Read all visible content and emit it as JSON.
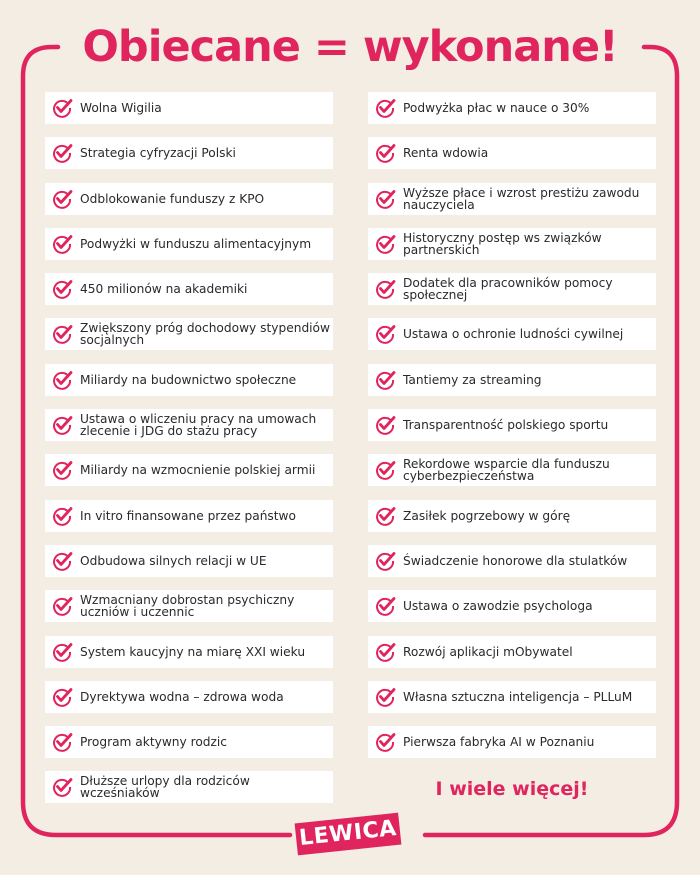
{
  "title": "Obiecane = wykonane!",
  "accent_color": "#e0245e",
  "icon": "check-circle-icon",
  "left_items": [
    "Wolna Wigilia",
    "Strategia cyfryzacji Polski",
    "Odblokowanie funduszy z KPO",
    "Podwyżki w funduszu alimentacyjnym",
    "450 milionów na akademiki",
    "Zwiększony próg dochodowy stypendiów socjalnych",
    "Miliardy na budownictwo społeczne",
    "Ustawa o wliczeniu pracy na umowach zlecenie i JDG do stażu pracy",
    "Miliardy na wzmocnienie polskiej armii",
    "In vitro finansowane przez państwo",
    "Odbudowa silnych relacji w UE",
    "Wzmacniany dobrostan psychiczny uczniów i uczennic",
    "System kaucyjny na miarę XXI wieku",
    "Dyrektywa wodna – zdrowa woda",
    "Program aktywny rodzic",
    "Dłuższe urlopy dla rodziców wcześniaków"
  ],
  "right_items": [
    "Podwyżka płac w nauce o 30%",
    "Renta wdowia",
    "Wyższe płace i wzrost prestiżu zawodu nauczyciela",
    "Historyczny postęp ws związków partnerskich",
    "Dodatek dla pracowników pomocy społecznej",
    "Ustawa o ochronie ludności cywilnej",
    "Tantiemy za streaming",
    "Transparentność polskiego sportu",
    "Rekordowe wsparcie dla funduszu cyberbezpieczeństwa",
    "Zasiłek pogrzebowy w górę",
    "Świadczenie honorowe dla stulatków",
    "Ustawa o zawodzie psychologa",
    "Rozwój aplikacji mObywatel",
    "Własna sztuczna inteligencja – PLLuM",
    "Pierwsza fabryka AI w Poznaniu"
  ],
  "more_text": "I wiele więcej!",
  "logo": "LEWICA"
}
